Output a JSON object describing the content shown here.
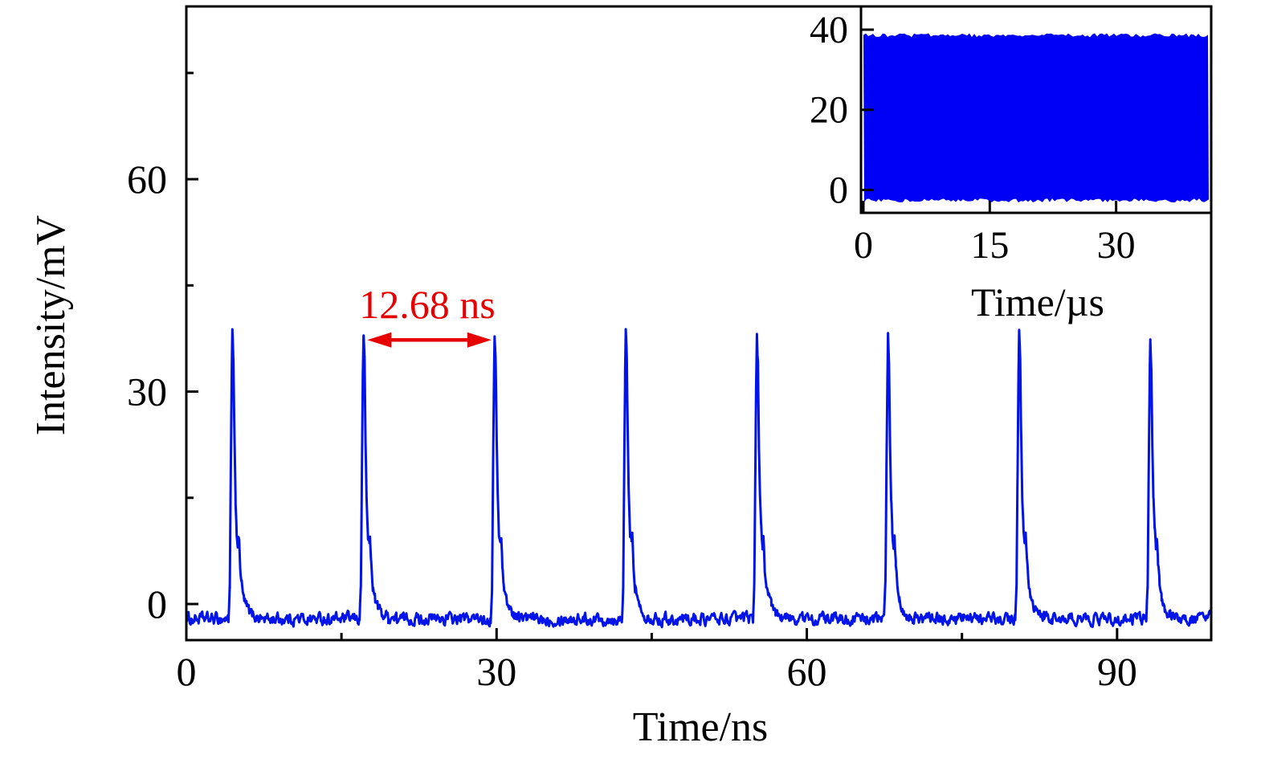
{
  "figure": {
    "background": "#ffffff",
    "axis_color": "#000000",
    "text_color": "#000000"
  },
  "chart_data": [
    {
      "id": "main",
      "type": "line",
      "title": "",
      "xlabel": "Time/ns",
      "ylabel": "Intensity/mV",
      "xlim": [
        0,
        99.1
      ],
      "ylim": [
        -5.1,
        84.4
      ],
      "xticks": [
        0,
        30,
        60,
        90
      ],
      "xticks_minor": [
        15,
        45,
        75
      ],
      "yticks": [
        0,
        30,
        60
      ],
      "yticks_minor": [
        15,
        45,
        75
      ],
      "grid": false,
      "legend": false,
      "series": [
        {
          "name": "pulse train",
          "color": "#0013e8",
          "baseline_mV": -2.1,
          "noise_amplitude_mV": 1.1,
          "peak_amplitude_mV": 38.3,
          "first_peak_ns": 4.45,
          "pulse_period_ns": 12.68,
          "n_pulses": 8,
          "peak_times_ns": [
            4.45,
            17.13,
            29.81,
            42.49,
            55.17,
            67.85,
            80.53,
            93.21
          ],
          "pulse_shape": [
            [
              -0.38,
              0
            ],
            [
              -0.25,
              0.12
            ],
            [
              -0.15,
              0.52
            ],
            [
              -0.06,
              0.85
            ],
            [
              0,
              1.0
            ],
            [
              0.1,
              0.9
            ],
            [
              0.2,
              0.62
            ],
            [
              0.3,
              0.42
            ],
            [
              0.42,
              0.3
            ],
            [
              0.55,
              0.26
            ],
            [
              0.63,
              0.28
            ],
            [
              0.75,
              0.19
            ],
            [
              0.9,
              0.12
            ],
            [
              1.1,
              0.07
            ],
            [
              1.4,
              0.04
            ],
            [
              1.8,
              0.018
            ],
            [
              2.4,
              0.006
            ],
            [
              3.2,
              0
            ]
          ]
        }
      ],
      "annotation": {
        "text": "12.68 ns",
        "color": "#e60000",
        "arrow_from_ns": 17.5,
        "arrow_to_ns": 29.5,
        "arrow_y_mV": 37.3
      }
    },
    {
      "id": "inset",
      "type": "area",
      "title": "",
      "xlabel": "Time/µs",
      "ylabel": "",
      "xlim": [
        0,
        41
      ],
      "ylim": [
        -5.1,
        45.2
      ],
      "xticks": [
        0,
        15,
        30
      ],
      "yticks": [
        0,
        20,
        40
      ],
      "grid": false,
      "legend": false,
      "band_top_mV": 38.6,
      "band_bottom_mV": -2.6,
      "color": "#0000f5",
      "description": "dense pulse-train envelope, constant amplitude over full sweep"
    }
  ]
}
